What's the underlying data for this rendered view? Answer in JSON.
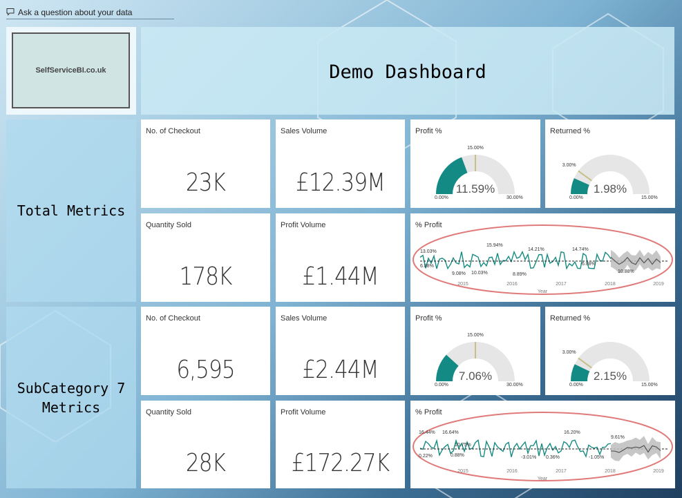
{
  "qa": {
    "label": "Ask a question about your data",
    "icon": "chat-bubble-icon"
  },
  "logo": {
    "text": "SelfServiceBI.co.uk"
  },
  "header": {
    "title": "Demo Dashboard"
  },
  "colors": {
    "gauge_fill": "#138b84",
    "gauge_bg": "#e6e6e6",
    "target": "#c8bf86",
    "line": "#168b83",
    "forecast": "#555555",
    "band": "#bdbdbd",
    "highlight_ring": "#e07a7a"
  },
  "sections": [
    {
      "label": "Total Metrics",
      "cards": [
        {
          "title": "No. of Checkout",
          "value": "23K"
        },
        {
          "title": "Sales Volume",
          "value": "£12.39M"
        },
        {
          "title": "Quantity Sold",
          "value": "178K"
        },
        {
          "title": "Profit Volume",
          "value": "£1.44M"
        }
      ],
      "gauges": [
        {
          "title": "Profit %",
          "value": 11.59,
          "value_label": "11.59%",
          "min": 0,
          "max": 30,
          "min_label": "0.00%",
          "max_label": "30.00%",
          "target": 15,
          "target_label": "15.00%"
        },
        {
          "title": "Returned %",
          "value": 1.98,
          "value_label": "1.98%",
          "min": 0,
          "max": 15,
          "min_label": "0.00%",
          "max_label": "15.00%",
          "target": 3,
          "target_label": "3.00%"
        }
      ],
      "trend": {
        "title": "% Profit",
        "x_axis_title": "Year",
        "years": [
          "2015",
          "2016",
          "2017",
          "2018",
          "2019"
        ],
        "labels": [
          "13.03%",
          "6.88%",
          "9.08%",
          "10.03%",
          "15.94%",
          "8.89%",
          "14.21%",
          "14.74%",
          "6.88%",
          "10.88%"
        ]
      }
    },
    {
      "label": "SubCategory 7 Metrics",
      "cards": [
        {
          "title": "No. of Checkout",
          "value": "6,595"
        },
        {
          "title": "Sales Volume",
          "value": "£2.44M"
        },
        {
          "title": "Quantity Sold",
          "value": "28K"
        },
        {
          "title": "Profit Volume",
          "value": "£172.27K"
        }
      ],
      "gauges": [
        {
          "title": "Profit %",
          "value": 7.06,
          "value_label": "7.06%",
          "min": 0,
          "max": 30,
          "min_label": "0.00%",
          "max_label": "30.00%",
          "target": 15,
          "target_label": "15.00%"
        },
        {
          "title": "Returned %",
          "value": 2.15,
          "value_label": "2.15%",
          "min": 0,
          "max": 15,
          "min_label": "0.00%",
          "max_label": "15.00%",
          "target": 3,
          "target_label": "3.00%"
        }
      ],
      "trend": {
        "title": "% Profit",
        "x_axis_title": "Year",
        "years": [
          "2015",
          "2016",
          "2017",
          "2018",
          "2019"
        ],
        "labels": [
          "16.44%",
          "0.22%",
          "16.64%",
          "0.88%",
          "10.75%",
          "-3.01%",
          "0.36%",
          "16.20%",
          "-1.05%",
          "9.61%"
        ]
      }
    }
  ]
}
